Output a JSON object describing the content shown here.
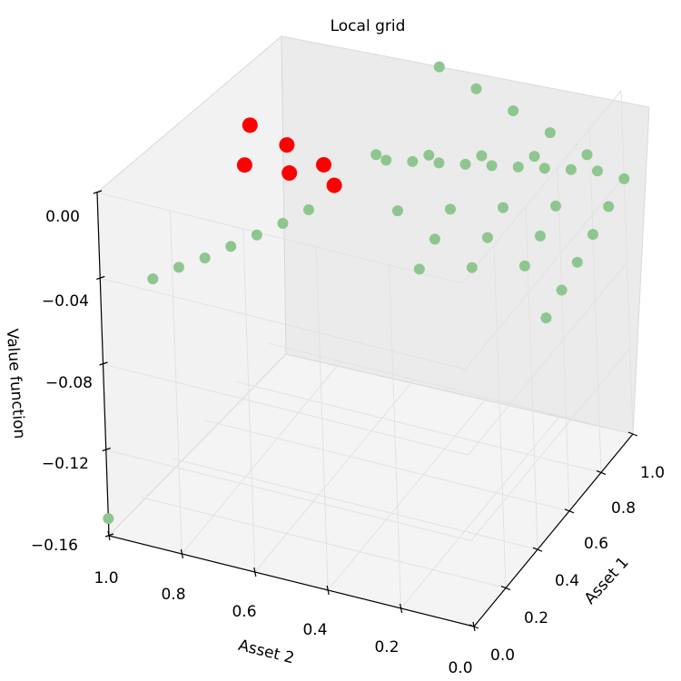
{
  "chart_data": {
    "type": "scatter",
    "projection": "3d",
    "title": "Local grid",
    "xlabel": "Asset 1",
    "ylabel": "Asset 2",
    "zlabel": "Value function",
    "xlim": [
      0.0,
      1.0
    ],
    "ylim": [
      0.0,
      1.0
    ],
    "zlim": [
      -0.16,
      0.0
    ],
    "xticks": [
      "0.0",
      "0.2",
      "0.4",
      "0.6",
      "0.8",
      "1.0"
    ],
    "yticks": [
      "0.2",
      "0.4",
      "0.6",
      "0.8",
      "1.0"
    ],
    "zticks": [
      "−0.16",
      "−0.12",
      "−0.08",
      "−0.04",
      "0.00"
    ],
    "grid": true,
    "colors": {
      "grid_points": "#8fc68f",
      "local_points": "#ff0000",
      "pane": "#f2f2f2",
      "gridline": "#e2e2e2"
    },
    "series": [
      {
        "role": "grid",
        "points": [
          {
            "x": 0.95,
            "y": 0.05,
            "z": -0.035
          },
          {
            "x": 1.0,
            "y": 0.0,
            "z": -0.041
          },
          {
            "x": 0.9,
            "y": 0.1,
            "z": -0.032
          },
          {
            "x": 0.85,
            "y": 0.15,
            "z": -0.029
          },
          {
            "x": 0.8,
            "y": 0.2,
            "z": -0.026
          },
          {
            "x": 0.75,
            "y": 0.25,
            "z": -0.023
          },
          {
            "x": 0.7,
            "y": 0.3,
            "z": -0.02
          },
          {
            "x": 0.65,
            "y": 0.35,
            "z": -0.017
          },
          {
            "x": 0.6,
            "y": 0.4,
            "z": -0.014
          },
          {
            "x": 0.55,
            "y": 0.45,
            "z": -0.011
          },
          {
            "x": 0.0,
            "y": 1.0,
            "z": -0.152
          },
          {
            "x": 0.1,
            "y": 0.9,
            "z": -0.045
          },
          {
            "x": 0.15,
            "y": 0.85,
            "z": -0.042
          },
          {
            "x": 0.2,
            "y": 0.8,
            "z": -0.04
          },
          {
            "x": 0.25,
            "y": 0.75,
            "z": -0.037
          },
          {
            "x": 0.3,
            "y": 0.7,
            "z": -0.034
          },
          {
            "x": 0.35,
            "y": 0.65,
            "z": -0.031
          },
          {
            "x": 0.4,
            "y": 0.6,
            "z": -0.027
          },
          {
            "x": 1.0,
            "y": 0.1,
            "z": -0.034
          },
          {
            "x": 1.0,
            "y": 0.2,
            "z": -0.028
          },
          {
            "x": 1.0,
            "y": 0.3,
            "z": -0.022
          },
          {
            "x": 1.0,
            "y": 0.4,
            "z": -0.016
          },
          {
            "x": 1.0,
            "y": 0.5,
            "z": -0.01
          },
          {
            "x": 0.9,
            "y": 0.0,
            "z": -0.045
          },
          {
            "x": 0.8,
            "y": 0.0,
            "z": -0.049
          },
          {
            "x": 0.7,
            "y": 0.0,
            "z": -0.053
          },
          {
            "x": 0.6,
            "y": 0.0,
            "z": -0.057
          },
          {
            "x": 0.5,
            "y": 0.0,
            "z": -0.061
          },
          {
            "x": 0.9,
            "y": 0.2,
            "z": -0.03
          },
          {
            "x": 0.8,
            "y": 0.3,
            "z": -0.025
          },
          {
            "x": 0.7,
            "y": 0.4,
            "z": -0.02
          },
          {
            "x": 0.6,
            "y": 0.5,
            "z": -0.015
          },
          {
            "x": 0.8,
            "y": 0.1,
            "z": -0.04
          },
          {
            "x": 0.7,
            "y": 0.2,
            "z": -0.036
          },
          {
            "x": 0.6,
            "y": 0.3,
            "z": -0.032
          },
          {
            "x": 0.5,
            "y": 0.4,
            "z": -0.028
          },
          {
            "x": 0.7,
            "y": 0.1,
            "z": -0.045
          },
          {
            "x": 0.6,
            "y": 0.2,
            "z": -0.041
          },
          {
            "x": 0.5,
            "y": 0.3,
            "z": -0.037
          },
          {
            "x": 0.6,
            "y": 0.1,
            "z": -0.05
          },
          {
            "x": 0.5,
            "y": 0.2,
            "z": -0.046
          },
          {
            "x": 0.4,
            "y": 0.3,
            "z": -0.042
          }
        ]
      },
      {
        "role": "local",
        "points": [
          {
            "x": 0.5,
            "y": 0.6,
            "z": -0.015
          },
          {
            "x": 0.5,
            "y": 0.7,
            "z": -0.01
          },
          {
            "x": 0.5,
            "y": 0.8,
            "z": -0.005
          },
          {
            "x": 0.45,
            "y": 0.55,
            "z": -0.018
          },
          {
            "x": 0.4,
            "y": 0.65,
            "z": -0.012
          },
          {
            "x": 0.35,
            "y": 0.75,
            "z": -0.008
          }
        ]
      }
    ]
  }
}
